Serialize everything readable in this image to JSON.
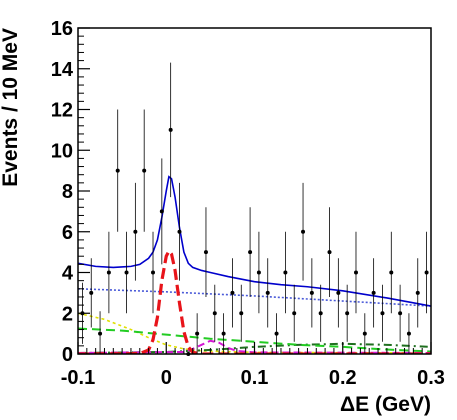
{
  "chart_data": {
    "type": "scatter",
    "title": "",
    "xlabel": "ΔE (GeV)",
    "ylabel": "Events / 10 MeV",
    "xlim": [
      -0.1,
      0.3
    ],
    "ylim": [
      0,
      16
    ],
    "xticks": [
      {
        "value": -0.1,
        "label": "-0.1"
      },
      {
        "value": 0,
        "label": "0"
      },
      {
        "value": 0.1,
        "label": "0.1"
      },
      {
        "value": 0.2,
        "label": "0.2"
      },
      {
        "value": 0.3,
        "label": "0.3"
      }
    ],
    "yticks": [
      {
        "value": 0,
        "label": "0"
      },
      {
        "value": 2,
        "label": "2"
      },
      {
        "value": 4,
        "label": "4"
      },
      {
        "value": 6,
        "label": "6"
      },
      {
        "value": 8,
        "label": "8"
      },
      {
        "value": 10,
        "label": "10"
      },
      {
        "value": 12,
        "label": "12"
      },
      {
        "value": 14,
        "label": "14"
      },
      {
        "value": 16,
        "label": "16"
      }
    ],
    "grid": false,
    "legend": "none",
    "colors": {
      "data": "#000000",
      "total_fit": "#0000cc",
      "signal": "#e8141a",
      "background_dotted": "#4a5ad8",
      "background_green": "#22cc22",
      "background_yellow": "#e0e000",
      "background_dash_dot": "#1f6f1f",
      "background_magenta": "#d417d4"
    },
    "data_points": [
      {
        "x": -0.095,
        "y": 2,
        "err": 1.5
      },
      {
        "x": -0.085,
        "y": 3,
        "err": 1.7
      },
      {
        "x": -0.075,
        "y": 1,
        "err": 1.1
      },
      {
        "x": -0.065,
        "y": 4,
        "err": 2.0
      },
      {
        "x": -0.055,
        "y": 9,
        "err": 3.0
      },
      {
        "x": -0.045,
        "y": 4,
        "err": 2.0
      },
      {
        "x": -0.035,
        "y": 6,
        "err": 2.4
      },
      {
        "x": -0.025,
        "y": 9,
        "err": 3.0
      },
      {
        "x": -0.015,
        "y": 4,
        "err": 2.0
      },
      {
        "x": -0.005,
        "y": 7,
        "err": 2.6
      },
      {
        "x": 0.005,
        "y": 11,
        "err": 3.3
      },
      {
        "x": 0.015,
        "y": 6,
        "err": 2.4
      },
      {
        "x": 0.025,
        "y": 0,
        "err": 0
      },
      {
        "x": 0.035,
        "y": 1,
        "err": 1.0
      },
      {
        "x": 0.045,
        "y": 5,
        "err": 2.2
      },
      {
        "x": 0.055,
        "y": 2,
        "err": 1.4
      },
      {
        "x": 0.065,
        "y": 1,
        "err": 1.0
      },
      {
        "x": 0.075,
        "y": 3,
        "err": 1.7
      },
      {
        "x": 0.085,
        "y": 2,
        "err": 1.4
      },
      {
        "x": 0.095,
        "y": 5,
        "err": 2.2
      },
      {
        "x": 0.105,
        "y": 4,
        "err": 2.0
      },
      {
        "x": 0.115,
        "y": 3,
        "err": 1.7
      },
      {
        "x": 0.125,
        "y": 1,
        "err": 1.0
      },
      {
        "x": 0.135,
        "y": 4,
        "err": 2.0
      },
      {
        "x": 0.145,
        "y": 2,
        "err": 1.4
      },
      {
        "x": 0.155,
        "y": 6,
        "err": 2.4
      },
      {
        "x": 0.165,
        "y": 3,
        "err": 1.7
      },
      {
        "x": 0.175,
        "y": 2,
        "err": 1.4
      },
      {
        "x": 0.185,
        "y": 5,
        "err": 2.2
      },
      {
        "x": 0.195,
        "y": 3,
        "err": 1.7
      },
      {
        "x": 0.205,
        "y": 2,
        "err": 1.4
      },
      {
        "x": 0.215,
        "y": 4,
        "err": 2.0
      },
      {
        "x": 0.225,
        "y": 1,
        "err": 1.0
      },
      {
        "x": 0.235,
        "y": 3,
        "err": 1.7
      },
      {
        "x": 0.245,
        "y": 2,
        "err": 1.4
      },
      {
        "x": 0.255,
        "y": 4,
        "err": 2.0
      },
      {
        "x": 0.265,
        "y": 2,
        "err": 1.4
      },
      {
        "x": 0.275,
        "y": 1,
        "err": 1.0
      },
      {
        "x": 0.285,
        "y": 3,
        "err": 1.7
      },
      {
        "x": 0.295,
        "y": 4,
        "err": 2.0
      }
    ],
    "curves": [
      {
        "style": "total_fit",
        "points": [
          [
            -0.1,
            4.45
          ],
          [
            -0.08,
            4.3
          ],
          [
            -0.06,
            4.25
          ],
          [
            -0.04,
            4.3
          ],
          [
            -0.03,
            4.4
          ],
          [
            -0.02,
            4.7
          ],
          [
            -0.015,
            5.0
          ],
          [
            -0.01,
            5.6
          ],
          [
            -0.005,
            6.7
          ],
          [
            0,
            8.0
          ],
          [
            0.003,
            8.7
          ],
          [
            0.006,
            8.6
          ],
          [
            0.01,
            7.7
          ],
          [
            0.015,
            6.2
          ],
          [
            0.02,
            5.0
          ],
          [
            0.025,
            4.45
          ],
          [
            0.03,
            4.25
          ],
          [
            0.04,
            4.1
          ],
          [
            0.05,
            4.0
          ],
          [
            0.07,
            3.8
          ],
          [
            0.1,
            3.55
          ],
          [
            0.13,
            3.4
          ],
          [
            0.16,
            3.3
          ],
          [
            0.2,
            3.1
          ],
          [
            0.25,
            2.75
          ],
          [
            0.3,
            2.35
          ]
        ]
      },
      {
        "style": "signal",
        "points": [
          [
            -0.1,
            0
          ],
          [
            -0.03,
            0.02
          ],
          [
            -0.02,
            0.2
          ],
          [
            -0.015,
            0.7
          ],
          [
            -0.01,
            1.8
          ],
          [
            -0.005,
            3.6
          ],
          [
            0,
            4.8
          ],
          [
            0.003,
            5.05
          ],
          [
            0.006,
            4.9
          ],
          [
            0.01,
            4.1
          ],
          [
            0.015,
            2.5
          ],
          [
            0.02,
            1.1
          ],
          [
            0.025,
            0.35
          ],
          [
            0.03,
            0.08
          ],
          [
            0.04,
            0
          ],
          [
            0.3,
            0
          ]
        ]
      },
      {
        "style": "background_dotted",
        "points": [
          [
            -0.1,
            3.2
          ],
          [
            0,
            3.05
          ],
          [
            0.1,
            2.85
          ],
          [
            0.2,
            2.6
          ],
          [
            0.3,
            2.35
          ]
        ]
      },
      {
        "style": "background_green",
        "points": [
          [
            -0.1,
            1.25
          ],
          [
            -0.05,
            1.15
          ],
          [
            0,
            0.95
          ],
          [
            0.05,
            0.75
          ],
          [
            0.1,
            0.6
          ],
          [
            0.15,
            0.45
          ],
          [
            0.2,
            0.35
          ],
          [
            0.25,
            0.22
          ],
          [
            0.3,
            0.12
          ]
        ]
      },
      {
        "style": "background_yellow",
        "points": [
          [
            -0.1,
            2.0
          ],
          [
            -0.07,
            1.7
          ],
          [
            -0.04,
            1.2
          ],
          [
            -0.02,
            0.8
          ],
          [
            0,
            0.45
          ],
          [
            0.02,
            0.25
          ],
          [
            0.04,
            0.15
          ],
          [
            0.1,
            0.08
          ],
          [
            0.3,
            0.05
          ]
        ]
      },
      {
        "style": "background_dash_dot",
        "points": [
          [
            -0.1,
            0.05
          ],
          [
            0,
            0.1
          ],
          [
            0.05,
            0.2
          ],
          [
            0.1,
            0.35
          ],
          [
            0.15,
            0.45
          ],
          [
            0.2,
            0.5
          ],
          [
            0.25,
            0.45
          ],
          [
            0.3,
            0.35
          ]
        ]
      },
      {
        "style": "background_magenta",
        "points": [
          [
            -0.1,
            0.05
          ],
          [
            0.02,
            0.1
          ],
          [
            0.03,
            0.25
          ],
          [
            0.04,
            0.45
          ],
          [
            0.05,
            0.65
          ],
          [
            0.06,
            0.55
          ],
          [
            0.07,
            0.3
          ],
          [
            0.08,
            0.15
          ],
          [
            0.1,
            0.08
          ],
          [
            0.3,
            0.05
          ]
        ]
      }
    ]
  }
}
